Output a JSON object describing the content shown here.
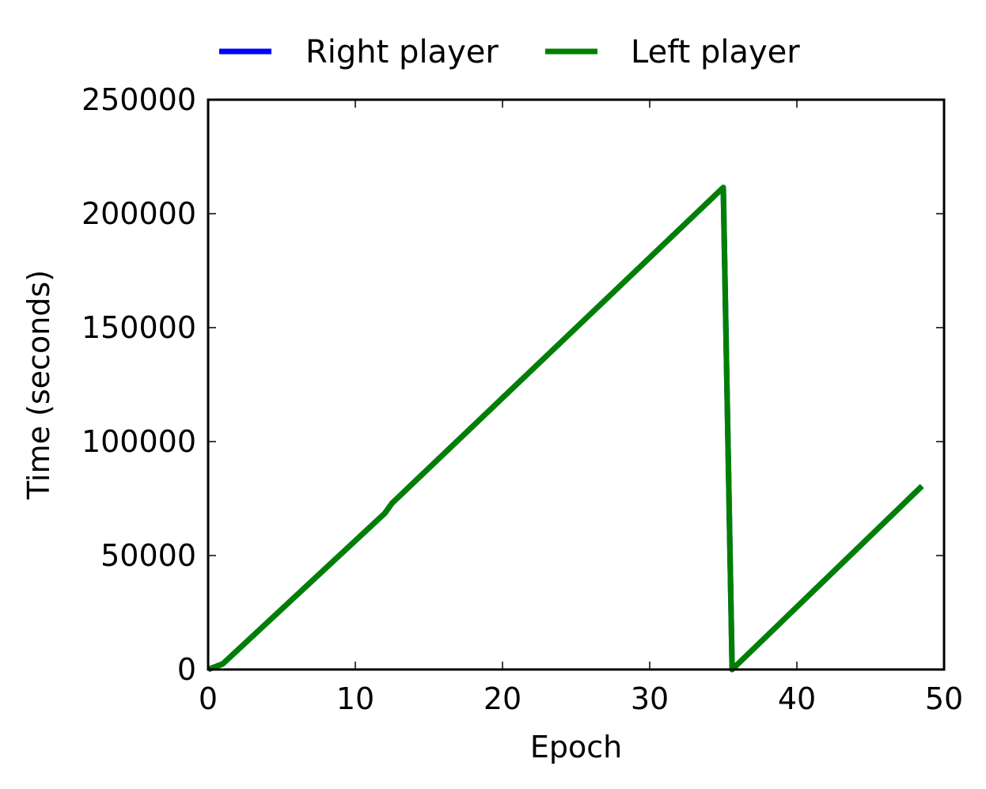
{
  "chart_data": {
    "type": "line",
    "title": "",
    "xlabel": "Epoch",
    "ylabel": "Time (seconds)",
    "xlim": [
      0,
      50
    ],
    "ylim": [
      0,
      250000
    ],
    "xticks": [
      0,
      10,
      20,
      30,
      40,
      50
    ],
    "yticks": [
      0,
      50000,
      100000,
      150000,
      200000,
      250000
    ],
    "xtick_labels": [
      "0",
      "10",
      "20",
      "30",
      "40",
      "50"
    ],
    "ytick_labels": [
      "0",
      "50000",
      "100000",
      "150000",
      "200000",
      "250000"
    ],
    "grid": false,
    "legend": {
      "position": "top-center-outside",
      "columns": 2
    },
    "series": [
      {
        "name": "Right player",
        "color": "#0000ff",
        "points": [
          [
            0,
            0
          ],
          [
            1,
            2500
          ],
          [
            12,
            68500
          ],
          [
            12.5,
            73000
          ],
          [
            35,
            211500
          ],
          [
            35.6,
            0
          ],
          [
            48.5,
            80500
          ]
        ]
      },
      {
        "name": "Left player",
        "color": "#008000",
        "points": [
          [
            0,
            0
          ],
          [
            1,
            2500
          ],
          [
            12,
            68500
          ],
          [
            12.5,
            73000
          ],
          [
            35,
            211500
          ],
          [
            35.6,
            0
          ],
          [
            48.5,
            80500
          ]
        ]
      }
    ]
  }
}
